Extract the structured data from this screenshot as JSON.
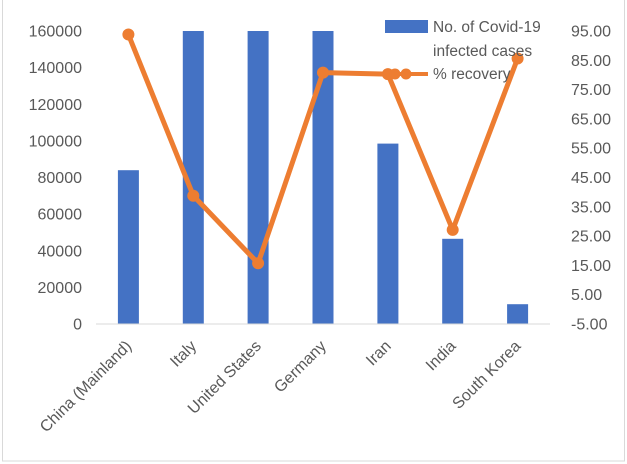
{
  "chart_data": {
    "type": "bar",
    "title": "",
    "xlabel": "",
    "ylabel": "",
    "categories": [
      "China (Mainland)",
      "Italy",
      "United States",
      "Germany",
      "Iran",
      "India",
      "South Korea"
    ],
    "series": [
      {
        "name": "No. of Covid-19 infected cases",
        "type": "bar",
        "axis": "left",
        "values": [
          84000,
          160000,
          160000,
          160000,
          98500,
          46500,
          10800
        ],
        "color": "#4472c4"
      },
      {
        "name": "% recovery",
        "type": "line",
        "axis": "right",
        "values": [
          93.8,
          38.8,
          15.7,
          80.8,
          80.3,
          27.1,
          85.6
        ],
        "color": "#ed7d31"
      }
    ],
    "ylim": [
      0,
      160000
    ],
    "y_ticks": [
      "0",
      "20000",
      "40000",
      "60000",
      "80000",
      "100000",
      "120000",
      "140000",
      "160000"
    ],
    "y2lim": [
      -5,
      95
    ],
    "y2_ticks": [
      "-5.00",
      "5.00",
      "15.00",
      "25.00",
      "35.00",
      "45.00",
      "55.00",
      "65.00",
      "75.00",
      "85.00",
      "95.00"
    ],
    "legend": {
      "position": "top-right",
      "entries": [
        "No. of Covid-19 infected cases",
        "% recovery"
      ]
    },
    "grid": false
  }
}
